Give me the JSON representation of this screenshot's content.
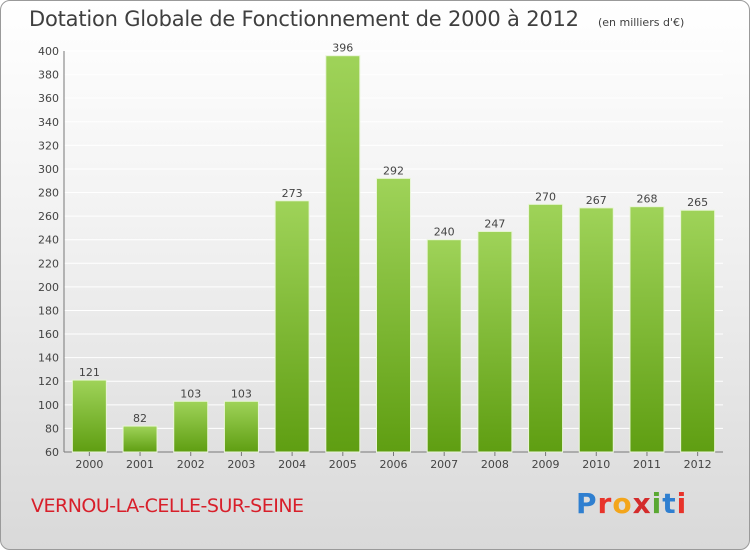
{
  "header": {
    "title": "Dotation Globale de Fonctionnement de 2000 à 2012",
    "unit": "(en milliers d'€)"
  },
  "footer": {
    "town": "VERNOU-LA-CELLE-SUR-SEINE",
    "brand": "Proxiti",
    "brand_colors": [
      "#2f7fd0",
      "#e8332a",
      "#f3a51b",
      "#d42b2b",
      "#5aa832",
      "#2f7fd0",
      "#e8332a"
    ]
  },
  "colors": {
    "bar_top": "#9fd359",
    "bar_bottom": "#5f9e12",
    "grid": "#ffffff",
    "text": "#444444",
    "accent_red": "#d81f2a"
  },
  "chart_data": {
    "type": "bar",
    "title": "Dotation Globale de Fonctionnement de 2000 à 2012",
    "subtitle": "(en milliers d'€)",
    "categories": [
      "2000",
      "2001",
      "2002",
      "2003",
      "2004",
      "2005",
      "2006",
      "2007",
      "2008",
      "2009",
      "2010",
      "2011",
      "2012"
    ],
    "values": [
      121,
      82,
      103,
      103,
      273,
      396,
      292,
      240,
      247,
      270,
      267,
      268,
      265
    ],
    "ylim": [
      60,
      400
    ],
    "yticks": [
      60,
      80,
      100,
      120,
      140,
      160,
      180,
      200,
      220,
      240,
      260,
      280,
      300,
      320,
      340,
      360,
      380,
      400
    ],
    "xlabel": "",
    "ylabel": "",
    "grid": true
  }
}
